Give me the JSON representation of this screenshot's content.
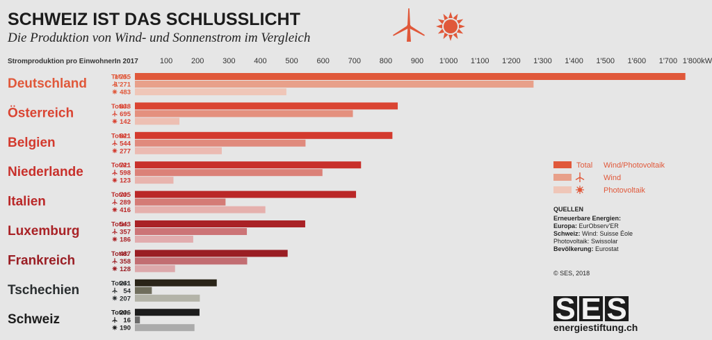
{
  "header": {
    "title": "SCHWEIZ IST DAS SCHLUSSLICHT",
    "subtitle": "Die Produktion von Wind- und Sonnenstrom im Vergleich",
    "icons": [
      "wind-turbine-icon",
      "sun-icon"
    ]
  },
  "chart_data": {
    "type": "bar",
    "orientation": "horizontal",
    "ylabel": "Stromproduktion pro EinwohnerIn 2017",
    "unit": "kWh",
    "xlim": [
      0,
      1800
    ],
    "xticks": [
      100,
      200,
      300,
      400,
      500,
      600,
      700,
      800,
      900,
      1000,
      1100,
      1200,
      1300,
      1400,
      1500,
      1600,
      1700,
      1800
    ],
    "xtick_labels": [
      "100",
      "200",
      "300",
      "400",
      "500",
      "600",
      "700",
      "800",
      "900",
      "1'000",
      "1'100",
      "1'200",
      "1'300",
      "1'400",
      "1'500",
      "1'600",
      "1'700",
      "1'800kWh"
    ],
    "total_label": "Total:",
    "categories": [
      {
        "name": "Deutschland",
        "total": 1755,
        "wind": 1271,
        "pv": 483,
        "total_label": "1'755",
        "wind_label": "1'271",
        "pv_label": "483",
        "colors": [
          "#e0583a",
          "#e8a08a",
          "#efc6b8"
        ],
        "label_color": "#e0583a"
      },
      {
        "name": "Österreich",
        "total": 838,
        "wind": 695,
        "pv": 142,
        "total_label": "838",
        "wind_label": "695",
        "pv_label": "142",
        "colors": [
          "#da4432",
          "#e4907e",
          "#edbfb3"
        ],
        "label_color": "#da4432"
      },
      {
        "name": "Belgien",
        "total": 821,
        "wind": 544,
        "pv": 277,
        "total_label": "821",
        "wind_label": "544",
        "pv_label": "277",
        "colors": [
          "#d33a2e",
          "#e08a7d",
          "#ebbab2"
        ],
        "label_color": "#d33a2e"
      },
      {
        "name": "Niederlande",
        "total": 721,
        "wind": 598,
        "pv": 123,
        "total_label": "721",
        "wind_label": "598",
        "pv_label": "123",
        "colors": [
          "#c8302b",
          "#db8178",
          "#e8b4ae"
        ],
        "label_color": "#c8302b"
      },
      {
        "name": "Italien",
        "total": 705,
        "wind": 289,
        "pv": 416,
        "total_label": "705",
        "wind_label": "289",
        "pv_label": "416",
        "colors": [
          "#ba2828",
          "#d47b76",
          "#e5b0ad"
        ],
        "label_color": "#ba2828"
      },
      {
        "name": "Luxemburg",
        "total": 543,
        "wind": 357,
        "pv": 186,
        "total_label": "543",
        "wind_label": "357",
        "pv_label": "186",
        "colors": [
          "#a92226",
          "#cc7477",
          "#e1acae"
        ],
        "label_color": "#a92226"
      },
      {
        "name": "Frankreich",
        "total": 487,
        "wind": 358,
        "pv": 128,
        "total_label": "487",
        "wind_label": "358",
        "pv_label": "128",
        "colors": [
          "#9a1e24",
          "#c26d72",
          "#dca8ab"
        ],
        "label_color": "#9a1e24"
      },
      {
        "name": "Tschechien",
        "total": 261,
        "wind": 54,
        "pv": 207,
        "total_label": "261",
        "wind_label": "54",
        "pv_label": "207",
        "colors": [
          "#2a2418",
          "#6f6d5c",
          "#b3b3a8"
        ],
        "label_color": "#2a2e30"
      },
      {
        "name": "Schweiz",
        "total": 206,
        "wind": 16,
        "pv": 190,
        "total_label": "206",
        "wind_label": "16",
        "pv_label": "190",
        "colors": [
          "#1c1c1c",
          "#6a6a6a",
          "#ababab"
        ],
        "label_color": "#1c1c1c"
      }
    ],
    "legend": {
      "placement": "right",
      "items": [
        {
          "key": "total",
          "label": "Total",
          "right_label": "Wind/Photovoltaik",
          "color": "#e0583a"
        },
        {
          "key": "wind",
          "icon": "wind-turbine-icon",
          "right_label": "Wind",
          "color": "#e8a08a"
        },
        {
          "key": "pv",
          "icon": "sun-icon",
          "right_label": "Photovoltaik",
          "color": "#efc6b8"
        }
      ]
    }
  },
  "sources": {
    "heading": "QUELLEN",
    "lines": [
      {
        "bold": "Erneuerbare Energien:",
        "text": ""
      },
      {
        "bold": "Europa:",
        "text": " EurObserv'ER"
      },
      {
        "bold": "Schweiz:",
        "text": " Wind: Suisse Éole"
      },
      {
        "bold": "",
        "text": "Photovoltaik: Swissolar"
      },
      {
        "bold": "Bevölkerung:",
        "text": " Eurostat"
      }
    ],
    "copyright": "© SES, 2018"
  },
  "logo": {
    "letters": [
      "S",
      "E",
      "S"
    ],
    "caption": "energiestiftung.ch"
  },
  "colors": {
    "background": "#e6e6e6",
    "accent": "#e0583a",
    "dark": "#1c1c1c"
  }
}
